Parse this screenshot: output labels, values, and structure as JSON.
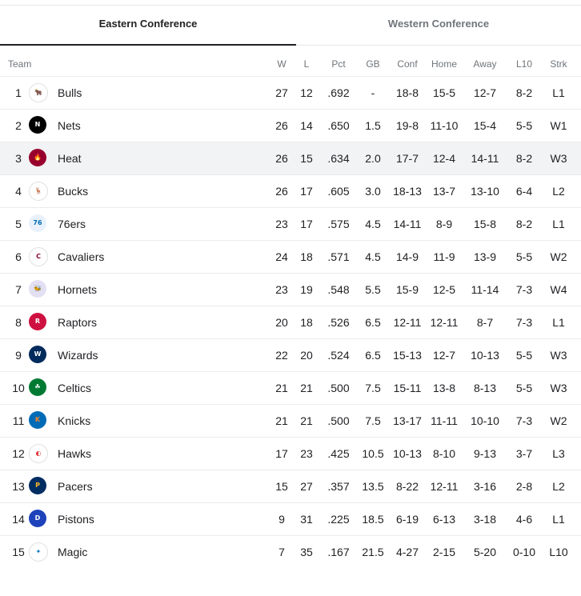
{
  "tabs": {
    "east": "Eastern Conference",
    "west": "Western Conference"
  },
  "headers": {
    "team": "Team",
    "w": "W",
    "l": "L",
    "pct": "Pct",
    "gb": "GB",
    "conf": "Conf",
    "home": "Home",
    "away": "Away",
    "l10": "L10",
    "strk": "Strk"
  },
  "teams": [
    {
      "rank": "1",
      "name": "Bulls",
      "w": "27",
      "l": "12",
      "pct": ".692",
      "gb": "-",
      "conf": "18-8",
      "home": "15-5",
      "away": "12-7",
      "l10": "8-2",
      "strk": "L1",
      "icon": "bulls-logo-icon",
      "color": "#ce1141",
      "bg": "#ffffff",
      "glyph": "🐂"
    },
    {
      "rank": "2",
      "name": "Nets",
      "w": "26",
      "l": "14",
      "pct": ".650",
      "gb": "1.5",
      "conf": "19-8",
      "home": "11-10",
      "away": "15-4",
      "l10": "5-5",
      "strk": "W1",
      "icon": "nets-logo-icon",
      "color": "#ffffff",
      "bg": "#000000",
      "glyph": "N"
    },
    {
      "rank": "3",
      "name": "Heat",
      "w": "26",
      "l": "15",
      "pct": ".634",
      "gb": "2.0",
      "conf": "17-7",
      "home": "12-4",
      "away": "14-11",
      "l10": "8-2",
      "strk": "W3",
      "icon": "heat-logo-icon",
      "color": "#f9a01b",
      "bg": "#98002e",
      "glyph": "🔥"
    },
    {
      "rank": "4",
      "name": "Bucks",
      "w": "26",
      "l": "17",
      "pct": ".605",
      "gb": "3.0",
      "conf": "18-13",
      "home": "13-7",
      "away": "13-10",
      "l10": "6-4",
      "strk": "L2",
      "icon": "bucks-logo-icon",
      "color": "#00471b",
      "bg": "#ffffff",
      "glyph": "🦌"
    },
    {
      "rank": "5",
      "name": "76ers",
      "w": "23",
      "l": "17",
      "pct": ".575",
      "gb": "4.5",
      "conf": "14-11",
      "home": "8-9",
      "away": "15-8",
      "l10": "8-2",
      "strk": "L1",
      "icon": "76ers-logo-icon",
      "color": "#006bb6",
      "bg": "#e8f1fb",
      "glyph": "76"
    },
    {
      "rank": "6",
      "name": "Cavaliers",
      "w": "24",
      "l": "18",
      "pct": ".571",
      "gb": "4.5",
      "conf": "14-9",
      "home": "11-9",
      "away": "13-9",
      "l10": "5-5",
      "strk": "W2",
      "icon": "cavaliers-logo-icon",
      "color": "#860038",
      "bg": "#ffffff",
      "glyph": "C"
    },
    {
      "rank": "7",
      "name": "Hornets",
      "w": "23",
      "l": "19",
      "pct": ".548",
      "gb": "5.5",
      "conf": "15-9",
      "home": "12-5",
      "away": "11-14",
      "l10": "7-3",
      "strk": "W4",
      "icon": "hornets-logo-icon",
      "color": "#1d1160",
      "bg": "#e3e0f3",
      "glyph": "🐝"
    },
    {
      "rank": "8",
      "name": "Raptors",
      "w": "20",
      "l": "18",
      "pct": ".526",
      "gb": "6.5",
      "conf": "12-11",
      "home": "12-11",
      "away": "8-7",
      "l10": "7-3",
      "strk": "L1",
      "icon": "raptors-logo-icon",
      "color": "#ffffff",
      "bg": "#ce1141",
      "glyph": "R"
    },
    {
      "rank": "9",
      "name": "Wizards",
      "w": "22",
      "l": "20",
      "pct": ".524",
      "gb": "6.5",
      "conf": "15-13",
      "home": "12-7",
      "away": "10-13",
      "l10": "5-5",
      "strk": "W3",
      "icon": "wizards-logo-icon",
      "color": "#ffffff",
      "bg": "#002b5c",
      "glyph": "W"
    },
    {
      "rank": "10",
      "name": "Celtics",
      "w": "21",
      "l": "21",
      "pct": ".500",
      "gb": "7.5",
      "conf": "15-11",
      "home": "13-8",
      "away": "8-13",
      "l10": "5-5",
      "strk": "W3",
      "icon": "celtics-logo-icon",
      "color": "#ffffff",
      "bg": "#007a33",
      "glyph": "☘"
    },
    {
      "rank": "11",
      "name": "Knicks",
      "w": "21",
      "l": "21",
      "pct": ".500",
      "gb": "7.5",
      "conf": "13-17",
      "home": "11-11",
      "away": "10-10",
      "l10": "7-3",
      "strk": "W2",
      "icon": "knicks-logo-icon",
      "color": "#f58426",
      "bg": "#006bb6",
      "glyph": "K"
    },
    {
      "rank": "12",
      "name": "Hawks",
      "w": "17",
      "l": "23",
      "pct": ".425",
      "gb": "10.5",
      "conf": "10-13",
      "home": "8-10",
      "away": "9-13",
      "l10": "3-7",
      "strk": "L3",
      "icon": "hawks-logo-icon",
      "color": "#e03a3e",
      "bg": "#ffffff",
      "glyph": "◐"
    },
    {
      "rank": "13",
      "name": "Pacers",
      "w": "15",
      "l": "27",
      "pct": ".357",
      "gb": "13.5",
      "conf": "8-22",
      "home": "12-11",
      "away": "3-16",
      "l10": "2-8",
      "strk": "L2",
      "icon": "pacers-logo-icon",
      "color": "#fdbb30",
      "bg": "#002d62",
      "glyph": "P"
    },
    {
      "rank": "14",
      "name": "Pistons",
      "w": "9",
      "l": "31",
      "pct": ".225",
      "gb": "18.5",
      "conf": "6-19",
      "home": "6-13",
      "away": "3-18",
      "l10": "4-6",
      "strk": "L1",
      "icon": "pistons-logo-icon",
      "color": "#ffffff",
      "bg": "#1d42ba",
      "glyph": "D"
    },
    {
      "rank": "15",
      "name": "Magic",
      "w": "7",
      "l": "35",
      "pct": ".167",
      "gb": "21.5",
      "conf": "4-27",
      "home": "2-15",
      "away": "5-20",
      "l10": "0-10",
      "strk": "L10",
      "icon": "magic-logo-icon",
      "color": "#0077c0",
      "bg": "#ffffff",
      "glyph": "✦"
    }
  ]
}
